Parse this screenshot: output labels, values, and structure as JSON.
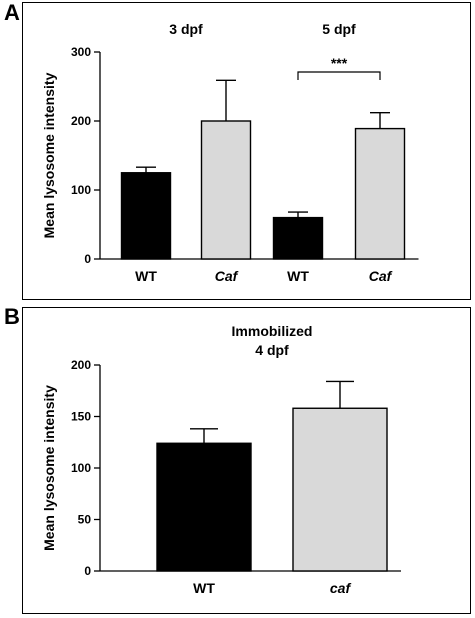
{
  "panels": [
    {
      "letter": "A",
      "chart_data": {
        "type": "bar",
        "categories": [
          "WT",
          "Caf",
          "WT",
          "Caf"
        ],
        "category_italic": [
          false,
          true,
          false,
          true
        ],
        "groups": [
          {
            "label": "3 dpf",
            "members": [
              0,
              1
            ]
          },
          {
            "label": "5 dpf",
            "members": [
              2,
              3
            ]
          }
        ],
        "values": [
          125,
          200,
          60,
          189
        ],
        "errors": [
          8,
          59,
          8,
          23
        ],
        "bar_colors": [
          "#000000",
          "#d9d9d9",
          "#000000",
          "#d9d9d9"
        ],
        "ylabel": "Mean lysosome intensity",
        "ylim": [
          0,
          300
        ],
        "yticks": [
          0,
          100,
          200,
          300
        ],
        "significance": [
          {
            "from": 2,
            "to": 3,
            "label": "***"
          }
        ],
        "grid": false
      }
    },
    {
      "letter": "B",
      "chart_data": {
        "type": "bar",
        "categories": [
          "WT",
          "caf"
        ],
        "category_italic": [
          false,
          true
        ],
        "title_lines": [
          "Immobilized",
          "4 dpf"
        ],
        "values": [
          124,
          158
        ],
        "errors": [
          14,
          26
        ],
        "bar_colors": [
          "#000000",
          "#d9d9d9"
        ],
        "ylabel": "Mean lysosome intensity",
        "ylim": [
          0,
          200
        ],
        "yticks": [
          0,
          50,
          100,
          150,
          200
        ],
        "grid": false
      }
    }
  ]
}
